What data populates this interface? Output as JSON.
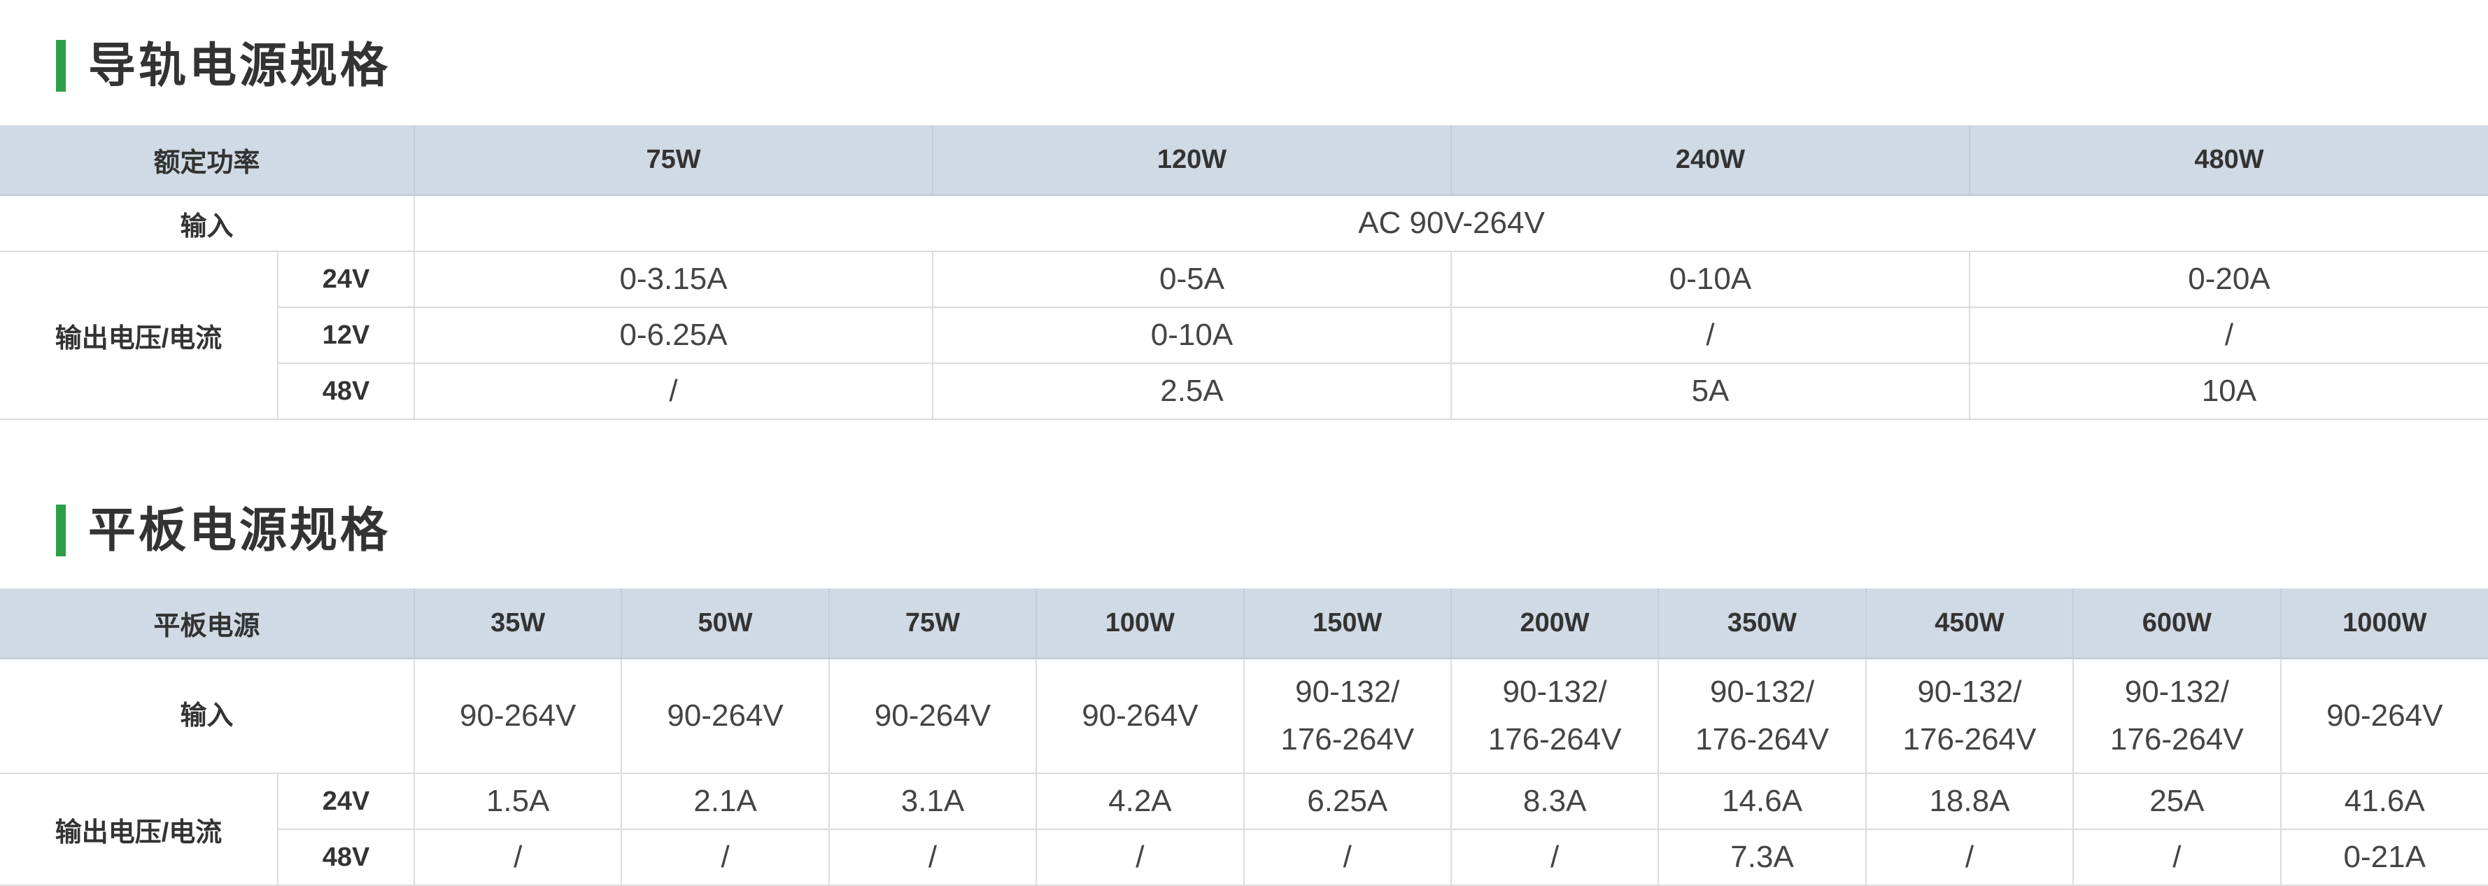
{
  "rail": {
    "title": "导轨电源规格",
    "header_label": "额定功率",
    "powers": [
      "75W",
      "120W",
      "240W",
      "480W"
    ],
    "input_label": "输入",
    "input_value": "AC 90V-264V",
    "output_label": "输出电压/电流",
    "rows": [
      {
        "voltage": "24V",
        "values": [
          "0-3.15A",
          "0-5A",
          "0-10A",
          "0-20A"
        ]
      },
      {
        "voltage": "12V",
        "values": [
          "0-6.25A",
          "0-10A",
          "/",
          "/"
        ]
      },
      {
        "voltage": "48V",
        "values": [
          "/",
          "2.5A",
          "5A",
          "10A"
        ]
      }
    ]
  },
  "panel": {
    "title": "平板电源规格",
    "header_label": "平板电源",
    "powers": [
      "35W",
      "50W",
      "75W",
      "100W",
      "150W",
      "200W",
      "350W",
      "450W",
      "600W",
      "1000W"
    ],
    "input_label": "输入",
    "inputs": [
      [
        "90-264V"
      ],
      [
        "90-264V"
      ],
      [
        "90-264V"
      ],
      [
        "90-264V"
      ],
      [
        "90-132/",
        "176-264V"
      ],
      [
        "90-132/",
        "176-264V"
      ],
      [
        "90-132/",
        "176-264V"
      ],
      [
        "90-132/",
        "176-264V"
      ],
      [
        "90-132/",
        "176-264V"
      ],
      [
        "90-264V"
      ]
    ],
    "output_label": "输出电压/电流",
    "rows": [
      {
        "voltage": "24V",
        "values": [
          "1.5A",
          "2.1A",
          "3.1A",
          "4.2A",
          "6.25A",
          "8.3A",
          "14.6A",
          "18.8A",
          "25A",
          "41.6A"
        ]
      },
      {
        "voltage": "48V",
        "values": [
          "/",
          "/",
          "/",
          "/",
          "/",
          "/",
          "7.3A",
          "/",
          "/",
          "0-21A"
        ]
      }
    ]
  },
  "colors": {
    "accent": "#2e9e48",
    "header_bg": "#d0dae4"
  }
}
